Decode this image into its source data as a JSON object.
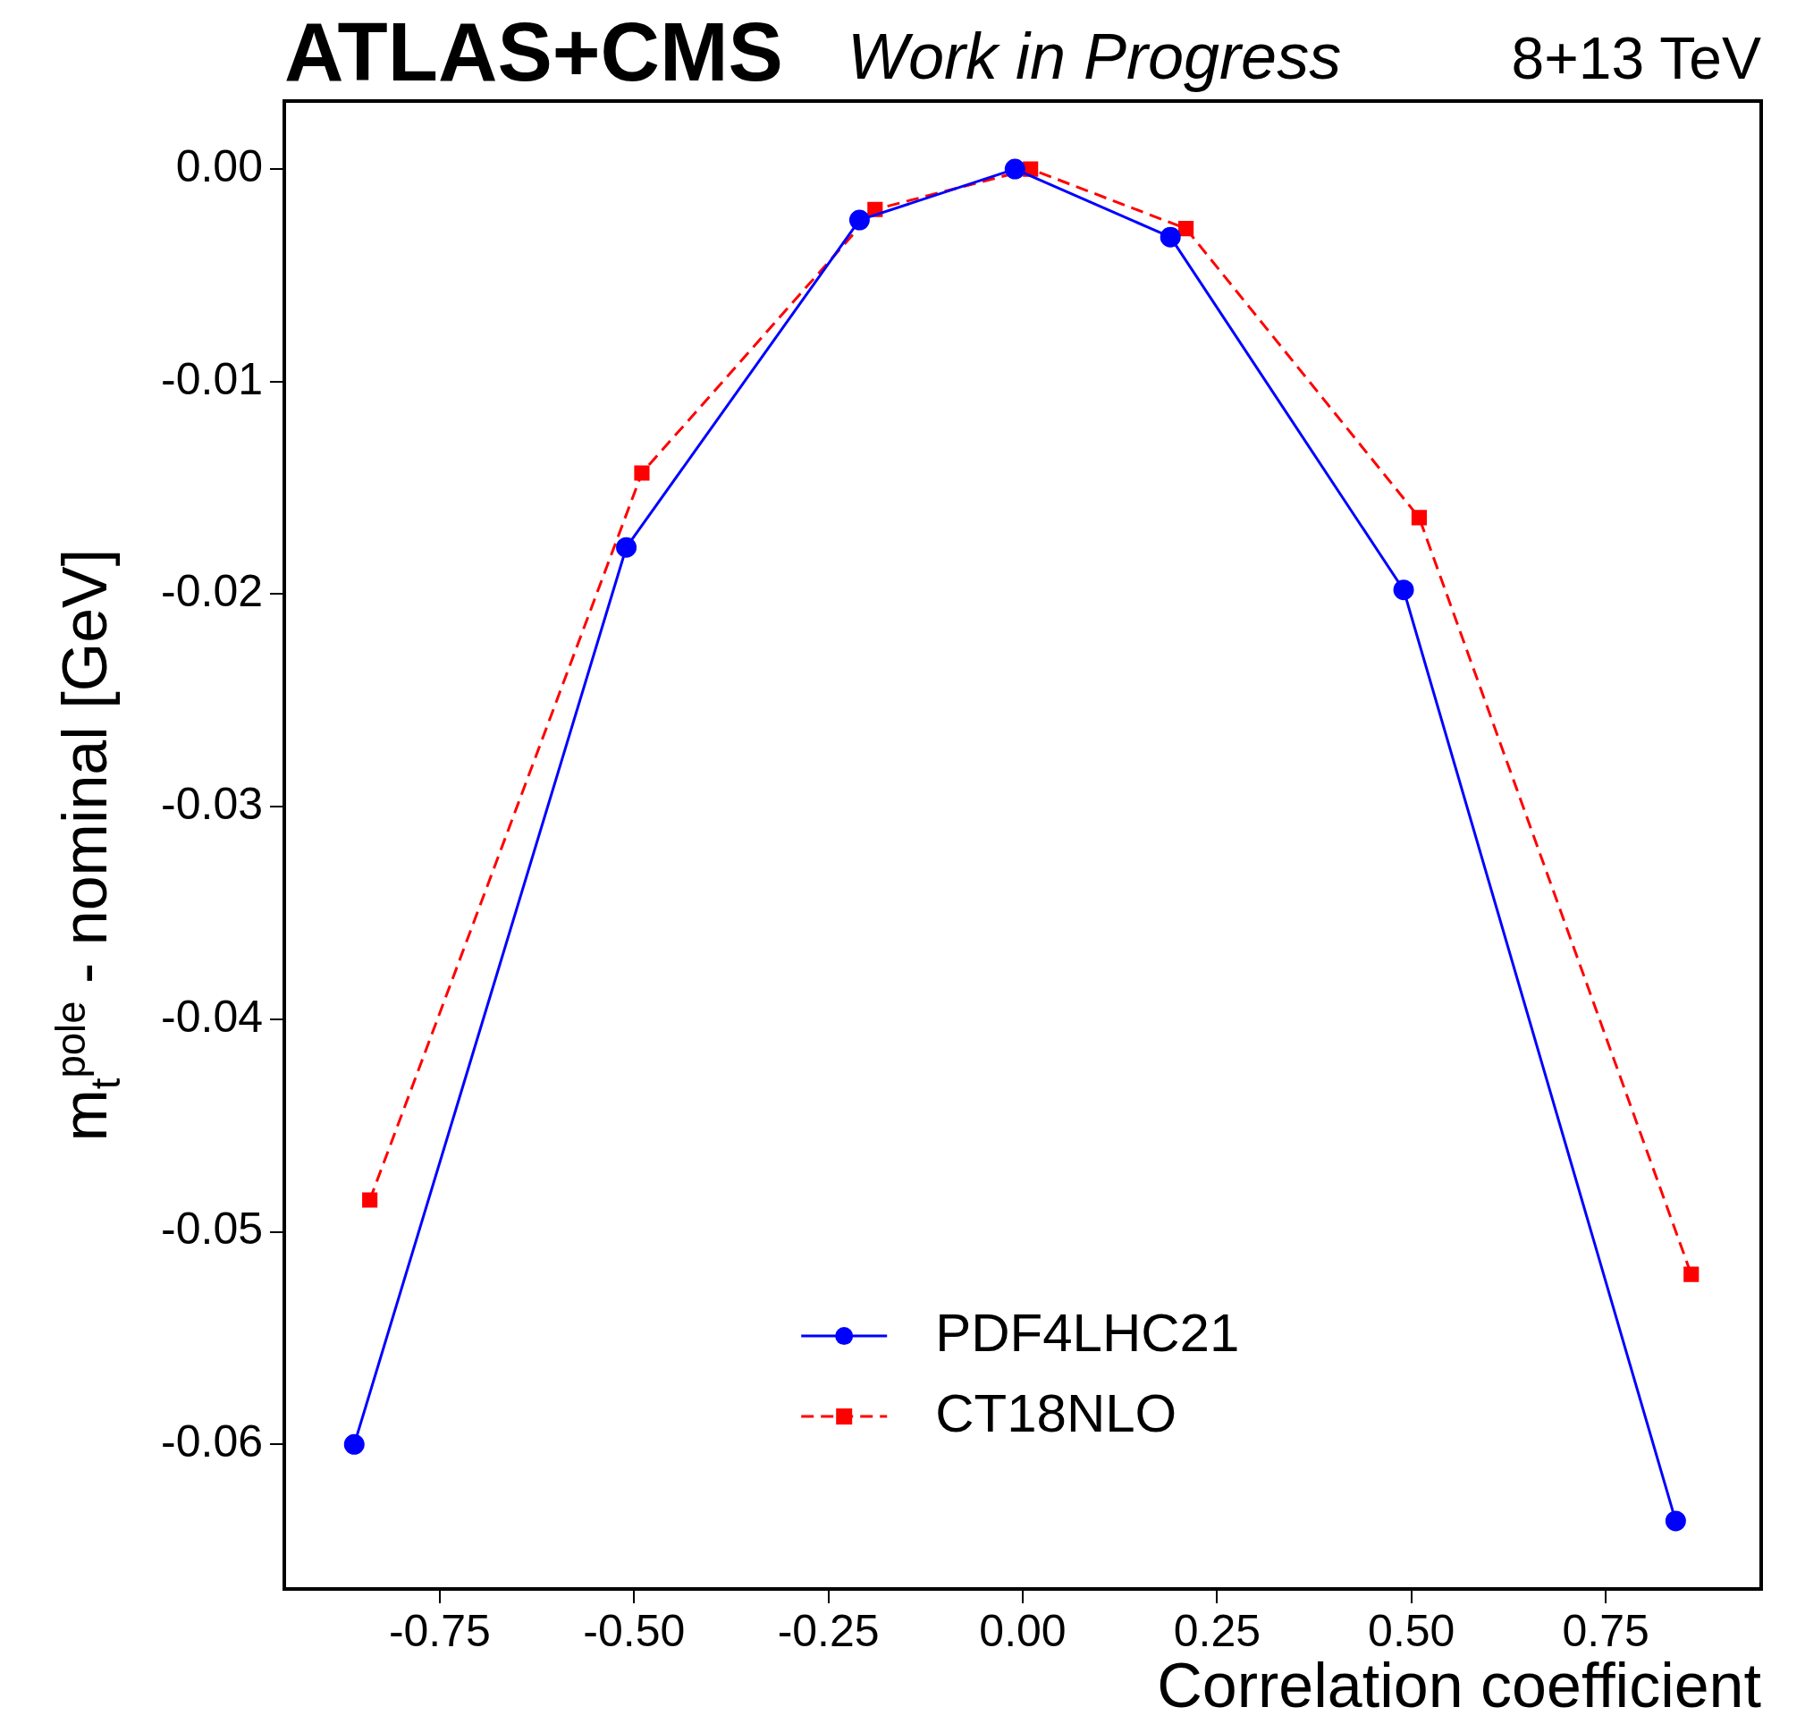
{
  "chart_data": {
    "type": "line",
    "title": "ATLAS+CMS",
    "subtitle": "Work in Progress",
    "annotations": [
      "8+13 TeV"
    ],
    "xlabel": "Correlation coefficient",
    "ylabel": "m$_{t}$$^{pole}$ - nominal [GeV]",
    "xlim": [
      -0.95,
      0.95
    ],
    "ylim": [
      -0.0668,
      0.0032
    ],
    "xticks": [
      {
        "value": -0.75,
        "label": "-0.75"
      },
      {
        "value": -0.5,
        "label": "-0.50"
      },
      {
        "value": -0.25,
        "label": "-0.25"
      },
      {
        "value": 0,
        "label": "0.00"
      },
      {
        "value": 0.25,
        "label": "0.25"
      },
      {
        "value": 0.5,
        "label": "0.50"
      },
      {
        "value": 0.75,
        "label": "0.75"
      }
    ],
    "yticks": [
      -0.06,
      -0.05,
      -0.04,
      -0.03,
      -0.02,
      -0.01,
      {
        "value": 0,
        "label": "0.00"
      }
    ],
    "grid": false,
    "legend": "bottom",
    "series": [
      {
        "name": "PDF4LHC21",
        "color": "#0000ff",
        "marker": "circle",
        "line_style": "solid",
        "x": [
          -0.86,
          -0.51,
          -0.21,
          -0.01,
          0.19,
          0.49,
          0.84
        ],
        "values": [
          -0.06,
          -0.0178,
          -0.0024,
          0,
          -0.0032,
          -0.0198,
          -0.0636
        ]
      },
      {
        "name": "CT18NLO",
        "color": "#ff0000",
        "marker": "square",
        "line_style": "dashed",
        "x": [
          -0.84,
          -0.49,
          -0.19,
          0.01,
          0.21,
          0.51,
          0.86
        ],
        "values": [
          -0.0485,
          -0.0143,
          -0.0019,
          0,
          -0.0028,
          -0.0164,
          -0.052
        ]
      }
    ]
  }
}
